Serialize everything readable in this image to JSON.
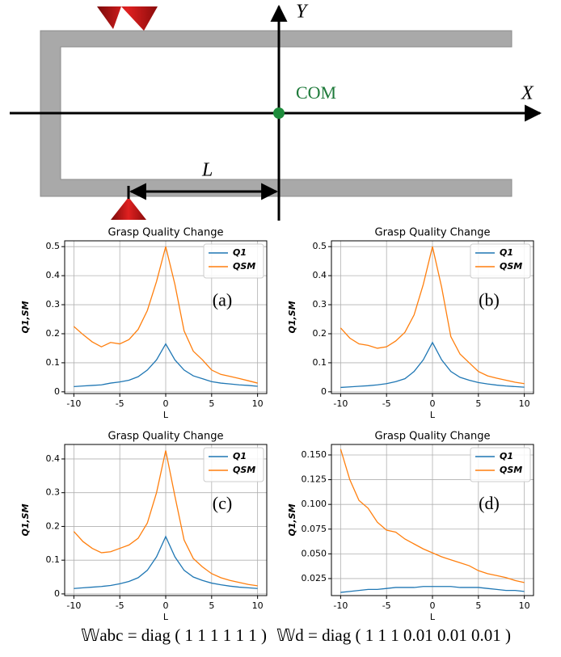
{
  "diagram": {
    "y_axis": "Y",
    "x_axis": "X",
    "com": "COM",
    "length": "L"
  },
  "formula": [
    "𝕎abc = diag ( 1 1 1 1 1 1 )",
    "𝕎d = diag ( 1 1 1 0.01 0.01 0.01 )"
  ],
  "chart_data": [
    {
      "type": "line",
      "title": "Grasp Quality Change",
      "panel": "(a)",
      "xlabel": "L",
      "ylabel": "Q1,SM",
      "x": [
        -10,
        -9,
        -8,
        -7,
        -6,
        -5,
        -4,
        -3,
        -2,
        -1,
        0,
        1,
        2,
        3,
        4,
        5,
        6,
        7,
        8,
        9,
        10
      ],
      "series": [
        {
          "name": "Q1",
          "color": "#1f77b4",
          "values": [
            0.018,
            0.02,
            0.022,
            0.024,
            0.03,
            0.034,
            0.04,
            0.052,
            0.075,
            0.11,
            0.165,
            0.11,
            0.075,
            0.055,
            0.045,
            0.035,
            0.03,
            0.027,
            0.024,
            0.022,
            0.019
          ]
        },
        {
          "name": "QSM",
          "color": "#ff7f0e",
          "values": [
            0.225,
            0.197,
            0.172,
            0.155,
            0.17,
            0.165,
            0.18,
            0.215,
            0.28,
            0.38,
            0.5,
            0.37,
            0.21,
            0.14,
            0.11,
            0.075,
            0.06,
            0.053,
            0.046,
            0.038,
            0.03
          ]
        }
      ],
      "xlim": [
        -11,
        11
      ],
      "xticks": [
        -10,
        -5,
        0,
        5,
        10
      ],
      "ylim": [
        -0.006,
        0.52
      ],
      "yticks": [
        0.0,
        0.1,
        0.2,
        0.3,
        0.4,
        0.5
      ],
      "grid": true,
      "legend": "upper right"
    },
    {
      "type": "line",
      "title": "Grasp Quality Change",
      "panel": "(b)",
      "xlabel": "L",
      "ylabel": "Q1,SM",
      "x": [
        -10,
        -9,
        -8,
        -7,
        -6,
        -5,
        -4,
        -3,
        -2,
        -1,
        0,
        1,
        2,
        3,
        4,
        5,
        6,
        7,
        8,
        9,
        10
      ],
      "series": [
        {
          "name": "Q1",
          "color": "#1f77b4",
          "values": [
            0.015,
            0.017,
            0.019,
            0.021,
            0.024,
            0.028,
            0.035,
            0.045,
            0.07,
            0.11,
            0.17,
            0.11,
            0.07,
            0.05,
            0.04,
            0.032,
            0.027,
            0.023,
            0.02,
            0.018,
            0.016
          ]
        },
        {
          "name": "QSM",
          "color": "#ff7f0e",
          "values": [
            0.22,
            0.185,
            0.165,
            0.16,
            0.15,
            0.155,
            0.175,
            0.205,
            0.265,
            0.37,
            0.5,
            0.36,
            0.19,
            0.13,
            0.1,
            0.07,
            0.055,
            0.047,
            0.04,
            0.033,
            0.028
          ]
        }
      ],
      "xlim": [
        -11,
        11
      ],
      "xticks": [
        -10,
        -5,
        0,
        5,
        10
      ],
      "ylim": [
        -0.006,
        0.52
      ],
      "yticks": [
        0.0,
        0.1,
        0.2,
        0.3,
        0.4,
        0.5
      ],
      "grid": true,
      "legend": "upper right"
    },
    {
      "type": "line",
      "title": "Grasp Quality Change",
      "panel": "(c)",
      "xlabel": "L",
      "ylabel": "Q1,SM",
      "x": [
        -10,
        -9,
        -8,
        -7,
        -6,
        -5,
        -4,
        -3,
        -2,
        -1,
        0,
        1,
        2,
        3,
        4,
        5,
        6,
        7,
        8,
        9,
        10
      ],
      "series": [
        {
          "name": "Q1",
          "color": "#1f77b4",
          "values": [
            0.016,
            0.018,
            0.02,
            0.022,
            0.025,
            0.03,
            0.037,
            0.048,
            0.07,
            0.11,
            0.17,
            0.11,
            0.07,
            0.05,
            0.04,
            0.032,
            0.027,
            0.023,
            0.02,
            0.018,
            0.016
          ]
        },
        {
          "name": "QSM",
          "color": "#ff7f0e",
          "values": [
            0.185,
            0.155,
            0.135,
            0.122,
            0.125,
            0.135,
            0.145,
            0.165,
            0.21,
            0.3,
            0.425,
            0.29,
            0.16,
            0.105,
            0.08,
            0.06,
            0.048,
            0.04,
            0.034,
            0.028,
            0.024
          ]
        }
      ],
      "xlim": [
        -11,
        11
      ],
      "xticks": [
        -10,
        -5,
        0,
        5,
        10
      ],
      "ylim": [
        -0.005,
        0.443
      ],
      "yticks": [
        0.0,
        0.1,
        0.2,
        0.3,
        0.4
      ],
      "grid": true,
      "legend": "upper right"
    },
    {
      "type": "line",
      "title": "Grasp Quality Change",
      "panel": "(d)",
      "xlabel": "L",
      "ylabel": "Q1,SM",
      "x": [
        -10,
        -9,
        -8,
        -7,
        -6,
        -5,
        -4,
        -3,
        -2,
        -1,
        0,
        1,
        2,
        3,
        4,
        5,
        6,
        7,
        8,
        9,
        10
      ],
      "series": [
        {
          "name": "Q1",
          "color": "#1f77b4",
          "values": [
            0.011,
            0.012,
            0.013,
            0.014,
            0.014,
            0.015,
            0.016,
            0.016,
            0.016,
            0.017,
            0.017,
            0.017,
            0.017,
            0.016,
            0.016,
            0.016,
            0.015,
            0.014,
            0.013,
            0.013,
            0.012
          ]
        },
        {
          "name": "QSM",
          "color": "#ff7f0e",
          "values": [
            0.156,
            0.125,
            0.104,
            0.096,
            0.082,
            0.074,
            0.072,
            0.065,
            0.06,
            0.055,
            0.051,
            0.047,
            0.044,
            0.041,
            0.038,
            0.033,
            0.03,
            0.028,
            0.026,
            0.023,
            0.021
          ]
        }
      ],
      "xlim": [
        -11,
        11
      ],
      "xticks": [
        -10,
        -5,
        0,
        5,
        10
      ],
      "ylim": [
        0.0078,
        0.1606
      ],
      "yticks": [
        0.025,
        {
          "value": 0.05,
          "label": "0.050"
        },
        0.075,
        {
          "value": 0.1,
          "label": "0.100"
        },
        0.125,
        {
          "value": 0.15,
          "label": "0.150"
        }
      ],
      "grid": true,
      "legend": "upper right"
    }
  ]
}
